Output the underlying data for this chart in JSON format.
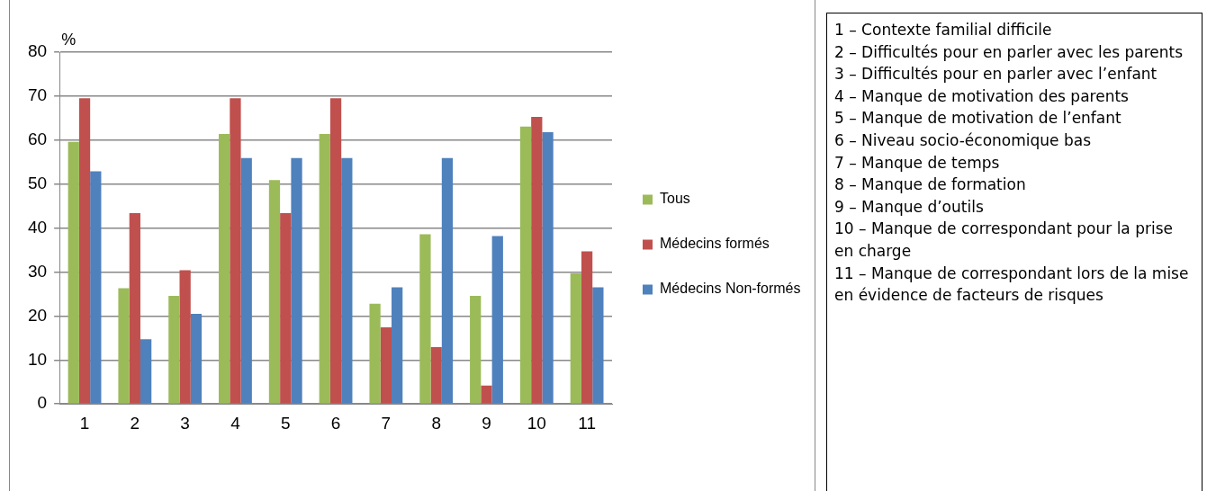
{
  "chart_data": {
    "type": "bar",
    "ylabel": "%",
    "categories": [
      "1",
      "2",
      "3",
      "4",
      "5",
      "6",
      "7",
      "8",
      "9",
      "10",
      "11"
    ],
    "series": [
      {
        "name": "Tous",
        "color": "#9bbb59",
        "values": [
          59.6,
          26.3,
          24.6,
          61.4,
          50.9,
          61.4,
          22.8,
          38.6,
          24.6,
          63.1,
          29.7
        ]
      },
      {
        "name": "Médecins formés",
        "color": "#c0504d",
        "values": [
          69.5,
          43.4,
          30.4,
          69.5,
          43.4,
          69.5,
          17.4,
          12.9,
          4.2,
          65.3,
          34.7
        ]
      },
      {
        "name": "Médecins Non-formés",
        "color": "#4f81bd",
        "values": [
          52.9,
          14.7,
          20.5,
          55.9,
          55.9,
          55.9,
          26.5,
          55.9,
          38.2,
          61.8,
          26.5
        ]
      }
    ],
    "ylim": [
      0,
      80
    ],
    "yticks": [
      0,
      10,
      20,
      30,
      40,
      50,
      60,
      70,
      80
    ],
    "grid": "y",
    "legend": "right",
    "annotations": [
      "1 – Contexte familial difficile",
      "2 – Difficultés pour en parler avec les parents",
      "3 – Difficultés pour en parler avec l’enfant",
      "4 – Manque de motivation des parents",
      "5 – Manque de motivation de l’enfant",
      "6 – Niveau socio-économique bas",
      "7 – Manque de temps",
      "8 – Manque de formation",
      "9 – Manque d’outils",
      "10 – Manque de correspondant pour la prise en charge",
      "11 – Manque de correspondant lors de la mise en évidence de facteurs de risques"
    ]
  }
}
